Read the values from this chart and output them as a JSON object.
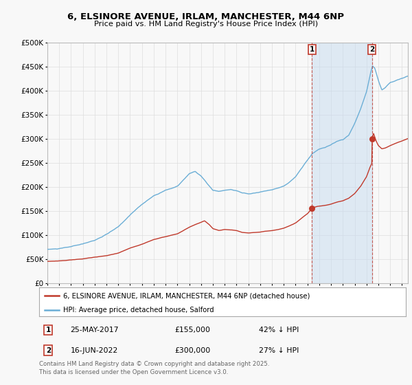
{
  "title": "6, ELSINORE AVENUE, IRLAM, MANCHESTER, M44 6NP",
  "subtitle": "Price paid vs. HM Land Registry's House Price Index (HPI)",
  "ylim": [
    0,
    500000
  ],
  "yticks": [
    0,
    50000,
    100000,
    150000,
    200000,
    250000,
    300000,
    350000,
    400000,
    450000,
    500000
  ],
  "ytick_labels": [
    "£0",
    "£50K",
    "£100K",
    "£150K",
    "£200K",
    "£250K",
    "£300K",
    "£350K",
    "£400K",
    "£450K",
    "£500K"
  ],
  "xmin": 1995,
  "xmax": 2025.5,
  "sale1_date": 2017.39,
  "sale1_price": 155000,
  "sale1_label": "25-MAY-2017",
  "sale1_pct": "42% ↓ HPI",
  "sale2_date": 2022.46,
  "sale2_price": 300000,
  "sale2_label": "16-JUN-2022",
  "sale2_pct": "27% ↓ HPI",
  "legend_line1": "6, ELSINORE AVENUE, IRLAM, MANCHESTER, M44 6NP (detached house)",
  "legend_line2": "HPI: Average price, detached house, Salford",
  "footer": "Contains HM Land Registry data © Crown copyright and database right 2025.\nThis data is licensed under the Open Government Licence v3.0.",
  "hpi_color": "#6baed6",
  "hpi_shade_color": "#c6dbef",
  "price_color": "#c0392b",
  "marker_color": "#c0392b",
  "bg_color": "#f8f8f8",
  "grid_color": "#dddddd"
}
